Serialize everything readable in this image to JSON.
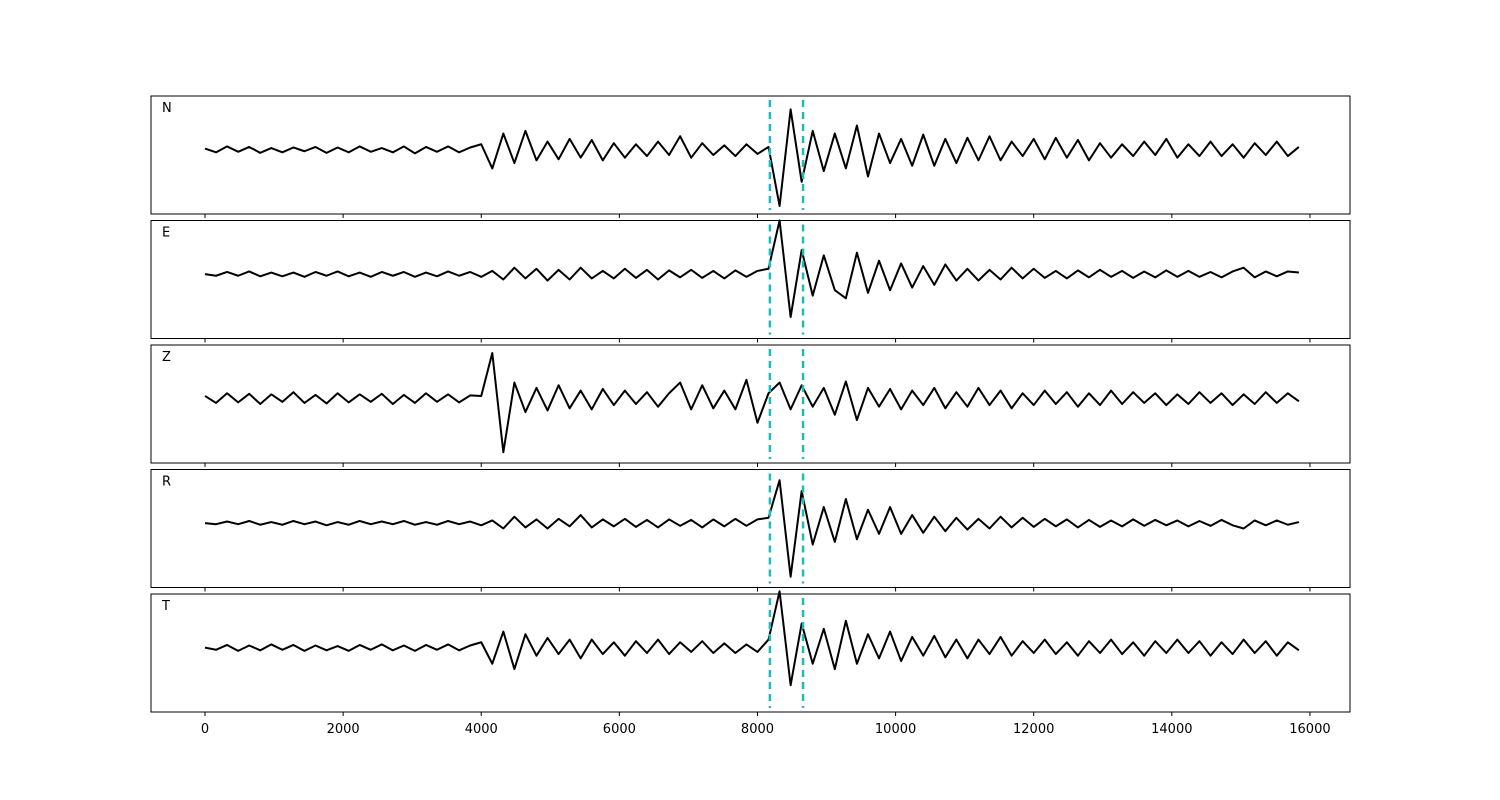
{
  "chart_data": {
    "type": "line",
    "layout": "stacked",
    "xlim": [
      -782,
      16580
    ],
    "ylim": [
      -1.2,
      1
    ],
    "xticks": [
      0,
      2000,
      4000,
      6000,
      8000,
      10000,
      12000,
      14000,
      16000
    ],
    "vlines": [
      8180,
      8660
    ],
    "vline_color": "#17bebb",
    "x": [
      0,
      160,
      320,
      480,
      640,
      800,
      960,
      1120,
      1280,
      1440,
      1600,
      1760,
      1920,
      2080,
      2240,
      2400,
      2560,
      2720,
      2880,
      3040,
      3200,
      3360,
      3520,
      3680,
      3840,
      4000,
      4160,
      4320,
      4480,
      4640,
      4800,
      4960,
      5120,
      5280,
      5440,
      5600,
      5760,
      5920,
      6080,
      6240,
      6400,
      6560,
      6720,
      6880,
      7040,
      7200,
      7360,
      7520,
      7680,
      7840,
      8000,
      8160,
      8320,
      8480,
      8640,
      8800,
      8960,
      9120,
      9280,
      9440,
      9600,
      9760,
      9920,
      10080,
      10240,
      10400,
      10560,
      10720,
      10880,
      11040,
      11200,
      11360,
      11520,
      11680,
      11840,
      12000,
      12160,
      12320,
      12480,
      12640,
      12800,
      12960,
      13120,
      13280,
      13440,
      13600,
      13760,
      13920,
      14080,
      14240,
      14400,
      14560,
      14720,
      14880,
      15040,
      15200,
      15360,
      15520,
      15680,
      15840
    ],
    "series": [
      {
        "name": "N",
        "color": "#000000",
        "values": [
          0.02,
          -0.05,
          0.06,
          -0.04,
          0.05,
          -0.06,
          0.03,
          -0.05,
          0.04,
          -0.03,
          0.05,
          -0.06,
          0.04,
          -0.05,
          0.06,
          -0.04,
          0.03,
          -0.05,
          0.06,
          -0.07,
          0.05,
          -0.04,
          0.06,
          -0.05,
          0.04,
          0.1,
          -0.35,
          0.3,
          -0.25,
          0.35,
          -0.2,
          0.15,
          -0.18,
          0.2,
          -0.15,
          0.18,
          -0.2,
          0.12,
          -0.15,
          0.1,
          -0.12,
          0.15,
          -0.1,
          0.25,
          -0.15,
          0.12,
          -0.1,
          0.08,
          -0.12,
          0.1,
          -0.08,
          0.05,
          -1.05,
          0.75,
          -0.6,
          0.35,
          -0.4,
          0.3,
          -0.35,
          0.45,
          -0.5,
          0.3,
          -0.25,
          0.2,
          -0.3,
          0.28,
          -0.3,
          0.2,
          -0.25,
          0.22,
          -0.2,
          0.25,
          -0.2,
          0.15,
          -0.12,
          0.2,
          -0.18,
          0.22,
          -0.15,
          0.18,
          -0.2,
          0.12,
          -0.15,
          0.1,
          -0.12,
          0.15,
          -0.1,
          0.2,
          -0.15,
          0.1,
          -0.12,
          0.15,
          -0.12,
          0.1,
          -0.15,
          0.12,
          -0.1,
          0.15,
          -0.12,
          0.05
        ]
      },
      {
        "name": "E",
        "color": "#000000",
        "values": [
          0.0,
          -0.03,
          0.04,
          -0.03,
          0.05,
          -0.04,
          0.03,
          -0.04,
          0.03,
          -0.05,
          0.04,
          -0.03,
          0.05,
          -0.04,
          0.03,
          -0.05,
          0.04,
          -0.03,
          0.04,
          -0.05,
          0.03,
          -0.04,
          0.05,
          -0.03,
          0.04,
          -0.05,
          0.06,
          -0.1,
          0.12,
          -0.08,
          0.1,
          -0.12,
          0.08,
          -0.1,
          0.12,
          -0.08,
          0.06,
          -0.08,
          0.1,
          -0.07,
          0.08,
          -0.1,
          0.07,
          -0.06,
          0.08,
          -0.07,
          0.06,
          -0.08,
          0.07,
          -0.05,
          0.06,
          0.1,
          1.0,
          -0.8,
          0.45,
          -0.4,
          0.35,
          -0.3,
          -0.45,
          0.4,
          -0.35,
          0.25,
          -0.3,
          0.2,
          -0.25,
          0.15,
          -0.2,
          0.18,
          -0.12,
          0.1,
          -0.12,
          0.08,
          -0.1,
          0.12,
          -0.08,
          0.1,
          -0.07,
          0.06,
          -0.08,
          0.07,
          -0.06,
          0.08,
          -0.05,
          0.06,
          -0.07,
          0.05,
          -0.06,
          0.07,
          -0.05,
          0.06,
          -0.05,
          0.04,
          -0.06,
          0.05,
          0.12,
          -0.06,
          0.05,
          -0.04,
          0.05,
          0.03
        ]
      },
      {
        "name": "Z",
        "color": "#000000",
        "values": [
          0.05,
          -0.08,
          0.1,
          -0.07,
          0.09,
          -0.1,
          0.08,
          -0.06,
          0.12,
          -0.08,
          0.07,
          -0.09,
          0.1,
          -0.07,
          0.08,
          -0.06,
          0.09,
          -0.1,
          0.07,
          -0.08,
          0.1,
          -0.06,
          0.08,
          -0.07,
          0.06,
          0.05,
          0.85,
          -1.0,
          0.3,
          -0.25,
          0.2,
          -0.22,
          0.25,
          -0.18,
          0.15,
          -0.2,
          0.18,
          -0.12,
          0.15,
          -0.1,
          0.12,
          -0.15,
          0.1,
          0.3,
          -0.2,
          0.25,
          -0.18,
          0.15,
          -0.2,
          0.35,
          -0.45,
          0.1,
          0.3,
          -0.2,
          0.25,
          -0.15,
          0.2,
          -0.3,
          0.32,
          -0.4,
          0.2,
          -0.15,
          0.18,
          -0.2,
          0.15,
          -0.12,
          0.2,
          -0.18,
          0.12,
          -0.15,
          0.2,
          -0.12,
          0.15,
          -0.18,
          0.1,
          -0.12,
          0.15,
          -0.1,
          0.12,
          -0.15,
          0.1,
          -0.12,
          0.15,
          -0.1,
          0.12,
          -0.08,
          0.1,
          -0.12,
          0.08,
          -0.1,
          0.12,
          -0.08,
          0.1,
          -0.12,
          0.08,
          -0.1,
          0.12,
          -0.08,
          0.1,
          -0.05
        ]
      },
      {
        "name": "R",
        "color": "#000000",
        "values": [
          0.0,
          -0.02,
          0.03,
          -0.02,
          0.04,
          -0.03,
          0.02,
          -0.03,
          0.04,
          -0.02,
          0.03,
          -0.04,
          0.02,
          -0.03,
          0.04,
          -0.02,
          0.03,
          -0.02,
          0.04,
          -0.03,
          0.02,
          -0.03,
          0.04,
          -0.02,
          0.03,
          -0.04,
          0.05,
          -0.1,
          0.12,
          -0.08,
          0.07,
          -0.1,
          0.08,
          -0.06,
          0.15,
          -0.08,
          0.07,
          -0.06,
          0.08,
          -0.07,
          0.06,
          -0.08,
          0.07,
          -0.05,
          0.06,
          -0.08,
          0.07,
          -0.06,
          0.08,
          -0.05,
          0.07,
          0.1,
          0.8,
          -1.0,
          0.6,
          -0.4,
          0.3,
          -0.35,
          0.45,
          -0.3,
          0.25,
          -0.2,
          0.3,
          -0.2,
          0.15,
          -0.18,
          0.12,
          -0.15,
          0.1,
          -0.12,
          0.08,
          -0.1,
          0.12,
          -0.08,
          0.1,
          -0.07,
          0.08,
          -0.06,
          0.07,
          -0.08,
          0.06,
          -0.07,
          0.05,
          -0.06,
          0.07,
          -0.05,
          0.06,
          -0.04,
          0.05,
          -0.06,
          0.04,
          -0.05,
          0.06,
          -0.04,
          -0.1,
          0.05,
          -0.04,
          0.05,
          -0.03,
          0.02
        ]
      },
      {
        "name": "T",
        "color": "#000000",
        "values": [
          0.0,
          -0.04,
          0.05,
          -0.06,
          0.04,
          -0.05,
          0.06,
          -0.04,
          0.05,
          -0.06,
          0.04,
          -0.05,
          0.03,
          -0.06,
          0.05,
          -0.04,
          0.06,
          -0.05,
          0.04,
          -0.06,
          0.05,
          -0.04,
          0.06,
          -0.05,
          0.04,
          0.1,
          -0.3,
          0.3,
          -0.4,
          0.25,
          -0.15,
          0.18,
          -0.12,
          0.15,
          -0.2,
          0.15,
          -0.12,
          0.1,
          -0.15,
          0.12,
          -0.1,
          0.15,
          -0.12,
          0.1,
          -0.08,
          0.12,
          -0.1,
          0.08,
          -0.1,
          0.06,
          -0.08,
          0.15,
          1.05,
          -0.7,
          0.45,
          -0.3,
          0.35,
          -0.4,
          0.5,
          -0.3,
          0.25,
          -0.2,
          0.3,
          -0.25,
          0.2,
          -0.15,
          0.22,
          -0.18,
          0.15,
          -0.2,
          0.15,
          -0.12,
          0.2,
          -0.15,
          0.12,
          -0.1,
          0.15,
          -0.12,
          0.1,
          -0.15,
          0.12,
          -0.1,
          0.15,
          -0.12,
          0.1,
          -0.15,
          0.12,
          -0.1,
          0.15,
          -0.1,
          0.12,
          -0.15,
          0.1,
          -0.12,
          0.15,
          -0.1,
          0.12,
          -0.15,
          0.1,
          -0.05
        ]
      }
    ]
  }
}
